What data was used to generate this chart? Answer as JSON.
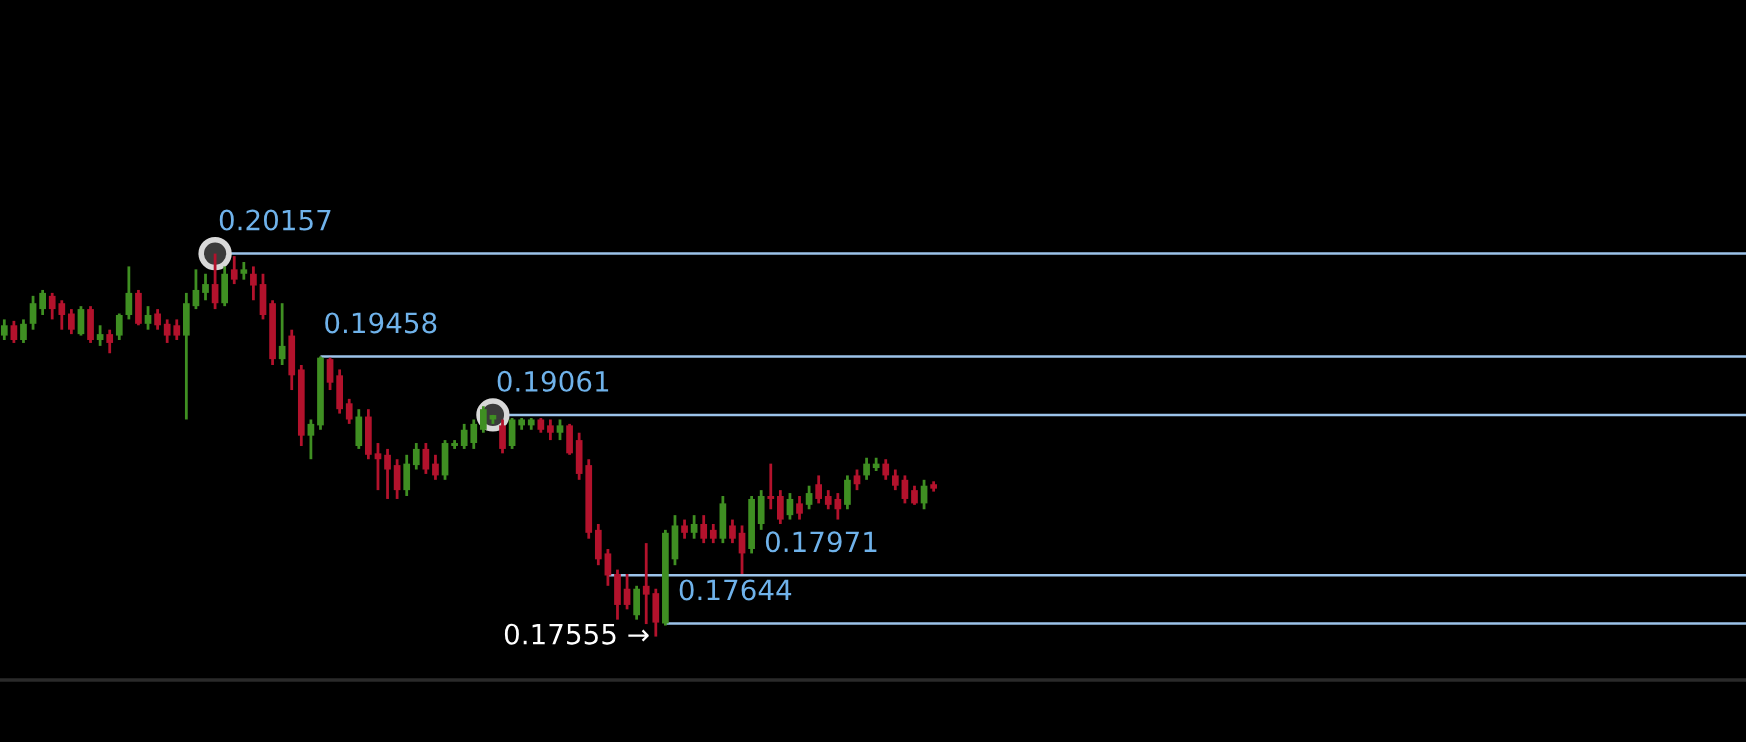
{
  "chart_data": {
    "type": "candlestick",
    "legend": false,
    "ylim": [
      0.1726,
      0.2188
    ],
    "categories": [
      null,
      null,
      null,
      null,
      null,
      null,
      null,
      null,
      null,
      null,
      null,
      null,
      null,
      null,
      null,
      null,
      null,
      null,
      null,
      null,
      null,
      null,
      null,
      null,
      null,
      null,
      null,
      null,
      null,
      null,
      null,
      null,
      null,
      null,
      null,
      null,
      null,
      null,
      null,
      null,
      null,
      null,
      null,
      null,
      null,
      null,
      null,
      null,
      null,
      null,
      null,
      null,
      null,
      null,
      null,
      null,
      null,
      null,
      null,
      null,
      null,
      null,
      null,
      null,
      null,
      null,
      null,
      null,
      null,
      null,
      null,
      null,
      null,
      null,
      null,
      null,
      null,
      null,
      null,
      null,
      null,
      null,
      null,
      null,
      null,
      null,
      null,
      null,
      null,
      null,
      null,
      null,
      null,
      null,
      null,
      null,
      null,
      null
    ],
    "ohlc": [
      [
        0.196,
        0.1971,
        0.1957,
        0.1967
      ],
      [
        0.1967,
        0.197,
        0.1955,
        0.1957
      ],
      [
        0.1957,
        0.1971,
        0.1955,
        0.1968
      ],
      [
        0.1968,
        0.1987,
        0.1964,
        0.1982
      ],
      [
        0.1978,
        0.1991,
        0.1974,
        0.1989
      ],
      [
        0.1987,
        0.1989,
        0.1971,
        0.1978
      ],
      [
        0.1982,
        0.1984,
        0.1964,
        0.1974
      ],
      [
        0.1975,
        0.1978,
        0.1961,
        0.1964
      ],
      [
        0.1961,
        0.198,
        0.196,
        0.1978
      ],
      [
        0.1978,
        0.198,
        0.1955,
        0.1957
      ],
      [
        0.1957,
        0.1967,
        0.1953,
        0.1961
      ],
      [
        0.1961,
        0.1964,
        0.1948,
        0.1955
      ],
      [
        0.196,
        0.1975,
        0.1957,
        0.1974
      ],
      [
        0.1974,
        0.2007,
        0.1971,
        0.1989
      ],
      [
        0.1989,
        0.1991,
        0.1967,
        0.1968
      ],
      [
        0.1968,
        0.198,
        0.1964,
        0.1974
      ],
      [
        0.1975,
        0.1978,
        0.1964,
        0.1967
      ],
      [
        0.1968,
        0.1971,
        0.1955,
        0.196
      ],
      [
        0.1967,
        0.1971,
        0.1957,
        0.196
      ],
      [
        0.196,
        0.1989,
        0.1903,
        0.1982
      ],
      [
        0.198,
        0.2005,
        0.1978,
        0.1991
      ],
      [
        0.1989,
        0.2002,
        0.1984,
        0.1995
      ],
      [
        0.1995,
        0.20157,
        0.1978,
        0.1982
      ],
      [
        0.1982,
        0.2007,
        0.198,
        0.2002
      ],
      [
        0.2005,
        0.2014,
        0.1995,
        0.1998
      ],
      [
        0.2002,
        0.201,
        0.1998,
        0.2005
      ],
      [
        0.2002,
        0.2007,
        0.1984,
        0.1994
      ],
      [
        0.1995,
        0.2002,
        0.1971,
        0.1974
      ],
      [
        0.1982,
        0.1984,
        0.194,
        0.1944
      ],
      [
        0.1944,
        0.1982,
        0.194,
        0.1953
      ],
      [
        0.196,
        0.1964,
        0.1923,
        0.1933
      ],
      [
        0.1937,
        0.194,
        0.1885,
        0.1892
      ],
      [
        0.1892,
        0.1903,
        0.1876,
        0.19
      ],
      [
        0.1899,
        0.19458,
        0.1896,
        0.1945
      ],
      [
        0.1944,
        0.1945,
        0.1923,
        0.1928
      ],
      [
        0.1933,
        0.1937,
        0.1907,
        0.191
      ],
      [
        0.1914,
        0.1917,
        0.19,
        0.1903
      ],
      [
        0.1885,
        0.191,
        0.1883,
        0.1905
      ],
      [
        0.1905,
        0.191,
        0.1876,
        0.1879
      ],
      [
        0.188,
        0.1887,
        0.1855,
        0.1876
      ],
      [
        0.1879,
        0.1883,
        0.1849,
        0.1869
      ],
      [
        0.1872,
        0.1876,
        0.1849,
        0.1855
      ],
      [
        0.1855,
        0.1879,
        0.1851,
        0.1873
      ],
      [
        0.1872,
        0.1887,
        0.1869,
        0.1883
      ],
      [
        0.1883,
        0.1887,
        0.1866,
        0.1869
      ],
      [
        0.1873,
        0.1879,
        0.1862,
        0.1865
      ],
      [
        0.1865,
        0.1889,
        0.1862,
        0.1887
      ],
      [
        0.1885,
        0.1889,
        0.1883,
        0.1887
      ],
      [
        0.1885,
        0.19,
        0.1883,
        0.1896
      ],
      [
        0.1887,
        0.1903,
        0.1883,
        0.19
      ],
      [
        0.1896,
        0.1912,
        0.1894,
        0.191
      ],
      [
        0.1903,
        0.19061,
        0.19,
        0.1906
      ],
      [
        0.1899,
        0.1903,
        0.188,
        0.1883
      ],
      [
        0.1885,
        0.1904,
        0.1883,
        0.1903
      ],
      [
        0.1899,
        0.1904,
        0.1896,
        0.1903
      ],
      [
        0.1899,
        0.1904,
        0.1896,
        0.1903
      ],
      [
        0.1903,
        0.1904,
        0.1894,
        0.1896
      ],
      [
        0.1899,
        0.1903,
        0.1889,
        0.1894
      ],
      [
        0.1894,
        0.1903,
        0.1889,
        0.1899
      ],
      [
        0.1899,
        0.19,
        0.1879,
        0.188
      ],
      [
        0.1889,
        0.1894,
        0.1862,
        0.1866
      ],
      [
        0.1872,
        0.1876,
        0.1822,
        0.1826
      ],
      [
        0.1828,
        0.1832,
        0.1804,
        0.1808
      ],
      [
        0.1812,
        0.1815,
        0.179,
        0.1797
      ],
      [
        0.1798,
        0.1801,
        0.1767,
        0.1777
      ],
      [
        0.1788,
        0.1798,
        0.1774,
        0.1777
      ],
      [
        0.177,
        0.179,
        0.1767,
        0.1788
      ],
      [
        0.179,
        0.1819,
        0.1764,
        0.1784
      ],
      [
        0.1785,
        0.1788,
        0.17555,
        0.1765
      ],
      [
        0.17644,
        0.1828,
        0.1763,
        0.1826
      ],
      [
        0.1808,
        0.1838,
        0.1804,
        0.1831
      ],
      [
        0.1831,
        0.1835,
        0.1822,
        0.1826
      ],
      [
        0.1826,
        0.1838,
        0.1822,
        0.1832
      ],
      [
        0.1832,
        0.1838,
        0.1819,
        0.1822
      ],
      [
        0.1828,
        0.1832,
        0.1819,
        0.1822
      ],
      [
        0.1822,
        0.1851,
        0.1819,
        0.1846
      ],
      [
        0.1831,
        0.1835,
        0.1819,
        0.1822
      ],
      [
        0.1826,
        0.1831,
        0.1798,
        0.1812
      ],
      [
        0.1815,
        0.1851,
        0.1812,
        0.1849
      ],
      [
        0.1832,
        0.1855,
        0.1828,
        0.1851
      ],
      [
        0.1851,
        0.1873,
        0.1842,
        0.1849
      ],
      [
        0.1851,
        0.1855,
        0.1832,
        0.1835
      ],
      [
        0.1838,
        0.1853,
        0.1835,
        0.1849
      ],
      [
        0.1846,
        0.1851,
        0.1835,
        0.1839
      ],
      [
        0.1845,
        0.1858,
        0.1842,
        0.1853
      ],
      [
        0.1859,
        0.1865,
        0.1846,
        0.1849
      ],
      [
        0.1851,
        0.1855,
        0.1842,
        0.1845
      ],
      [
        0.1849,
        0.1853,
        0.1835,
        0.1842
      ],
      [
        0.1845,
        0.1865,
        0.1842,
        0.1862
      ],
      [
        0.1865,
        0.1869,
        0.1855,
        0.1859
      ],
      [
        0.1865,
        0.1877,
        0.1862,
        0.1873
      ],
      [
        0.187,
        0.1877,
        0.1868,
        0.1873
      ],
      [
        0.1873,
        0.1876,
        0.1862,
        0.1865
      ],
      [
        0.1865,
        0.1869,
        0.1855,
        0.1858
      ],
      [
        0.1862,
        0.1865,
        0.1846,
        0.1849
      ],
      [
        0.1855,
        0.1858,
        0.1845,
        0.1846
      ],
      [
        0.1846,
        0.1862,
        0.1842,
        0.1858
      ],
      [
        0.1859,
        0.1861,
        0.1854,
        0.1856
      ]
    ],
    "colors": [
      "#3f8f22",
      "#b3122c",
      "#3f8f22",
      "#3f8f22",
      "#3f8f22",
      "#b3122c",
      "#b3122c",
      "#b3122c",
      "#3f8f22",
      "#b3122c",
      "#3f8f22",
      "#b3122c",
      "#3f8f22",
      "#3f8f22",
      "#b3122c",
      "#3f8f22",
      "#b3122c",
      "#b3122c",
      "#b3122c",
      "#3f8f22",
      "#3f8f22",
      "#3f8f22",
      "#b3122c",
      "#3f8f22",
      "#b3122c",
      "#3f8f22",
      "#b3122c",
      "#b3122c",
      "#b3122c",
      "#3f8f22",
      "#b3122c",
      "#b3122c",
      "#3f8f22",
      "#3f8f22",
      "#b3122c",
      "#b3122c",
      "#b3122c",
      "#3f8f22",
      "#b3122c",
      "#b3122c",
      "#b3122c",
      "#b3122c",
      "#3f8f22",
      "#3f8f22",
      "#b3122c",
      "#b3122c",
      "#3f8f22",
      "#3f8f22",
      "#3f8f22",
      "#3f8f22",
      "#3f8f22",
      "#3f8f22",
      "#b3122c",
      "#3f8f22",
      "#3f8f22",
      "#3f8f22",
      "#b3122c",
      "#b3122c",
      "#3f8f22",
      "#b3122c",
      "#b3122c",
      "#b3122c",
      "#b3122c",
      "#b3122c",
      "#b3122c",
      "#b3122c",
      "#3f8f22",
      "#b3122c",
      "#b3122c",
      "#3f8f22",
      "#3f8f22",
      "#b3122c",
      "#3f8f22",
      "#b3122c",
      "#b3122c",
      "#3f8f22",
      "#b3122c",
      "#b3122c",
      "#3f8f22",
      "#3f8f22",
      "#b3122c",
      "#b3122c",
      "#3f8f22",
      "#b3122c",
      "#3f8f22",
      "#b3122c",
      "#b3122c",
      "#b3122c",
      "#3f8f22",
      "#b3122c",
      "#3f8f22",
      "#3f8f22",
      "#b3122c",
      "#b3122c",
      "#b3122c",
      "#b3122c",
      "#3f8f22",
      "#b3122c"
    ],
    "ref_lines": [
      {
        "axis": "y",
        "value": 0.20157,
        "label": "0.20157",
        "color": "#9cc3ea"
      },
      {
        "axis": "y",
        "value": 0.19458,
        "label": "0.19458",
        "color": "#9cc3ea"
      },
      {
        "axis": "y",
        "value": 0.19061,
        "label": "0.19061",
        "color": "#9cc3ea"
      },
      {
        "axis": "y",
        "value": 0.17971,
        "label": "0.17971",
        "color": "#9cc3ea"
      },
      {
        "axis": "y",
        "value": 0.17644,
        "label": "0.17644",
        "color": "#9cc3ea"
      }
    ],
    "annotations": [
      "0.17555 →"
    ]
  }
}
